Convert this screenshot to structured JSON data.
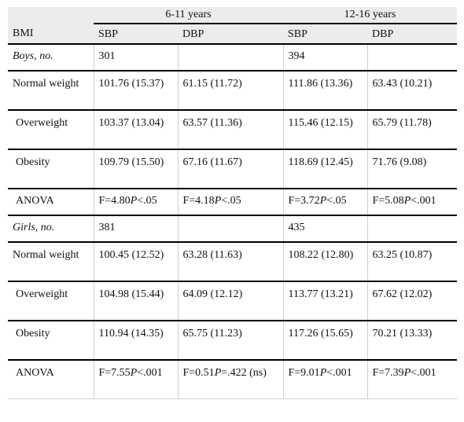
{
  "header": {
    "group1": "6-11 years",
    "group2": "12-16 years",
    "col0": "BMI",
    "sbp1": "SBP",
    "dbp1": "DBP",
    "sbp2": "SBP",
    "dbp2": "DBP"
  },
  "rows": [
    {
      "label": "Boys, no.",
      "c1": "301",
      "c2": "",
      "c3": "394",
      "c4": ""
    },
    {
      "label": "Normal weight",
      "c1": "101.76 (15.37)",
      "c2": "61.15 (11.72)",
      "c3": "111.86 (13.36)",
      "c4": "63.43 (10.21)"
    },
    {
      "label": "Overweight",
      "c1": "103.37 (13.04)",
      "c2": "63.57 (11.36)",
      "c3": "115.46 (12.15)",
      "c4": "65.79 (11.78)"
    },
    {
      "label": "Obesity",
      "c1": "109.79 (15.50)",
      "c2": "67.16 (11.67)",
      "c3": "118.69 (12.45)",
      "c4": "71.76 (9.08)"
    },
    {
      "label": "ANOVA",
      "c1a": "F=4.80",
      "c1p": "P",
      "c1b": "<.05",
      "c2a": "F=4.18",
      "c2p": "P",
      "c2b": "<.05",
      "c3a": "F=3.72",
      "c3p": "P",
      "c3b": "<.05",
      "c4a": "F=5.08",
      "c4p": "P",
      "c4b": "<.001"
    },
    {
      "label": "Girls, no.",
      "c1": "381",
      "c2": "",
      "c3": "435",
      "c4": ""
    },
    {
      "label": "Normal weight",
      "c1": "100.45 (12.52)",
      "c2": "63.28 (11.63)",
      "c3": "108.22 (12.80)",
      "c4": "63.25 (10.87)"
    },
    {
      "label": "Overweight",
      "c1": "104.98 (15.44)",
      "c2": "64.09 (12.12)",
      "c3": "113.77 (13.21)",
      "c4": "67.62 (12.02)"
    },
    {
      "label": "Obesity",
      "c1": "110.94 (14.35)",
      "c2": "65.75 (11.23)",
      "c3": "117.26 (15.65)",
      "c4": "70.21 (13.33)"
    },
    {
      "label": "ANOVA",
      "c1a": "F=7.55",
      "c1p": "P",
      "c1b": "<.001",
      "c2a": "F=0.51",
      "c2p": "P",
      "c2b": "=.422 (ns)",
      "c3a": "F=9.01",
      "c3p": "P",
      "c3b": "<.001",
      "c4a": "F=7.39",
      "c4p": "P",
      "c4b": "<.001"
    }
  ]
}
